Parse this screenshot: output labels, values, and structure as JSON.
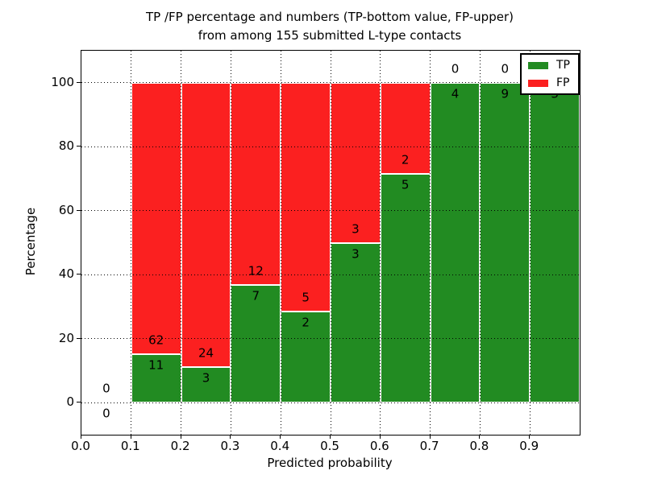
{
  "figure": {
    "title_line1": "TP /FP percentage and numbers (TP-bottom value, FP-upper)",
    "title_line2": "from among 155 submitted L-type contacts"
  },
  "chart_data": {
    "type": "bar",
    "stacked": true,
    "normalized_to_percent": true,
    "title": "TP /FP percentage and numbers (TP-bottom value, FP-upper)\nfrom among 155 submitted L-type contacts",
    "xlabel": "Predicted probability",
    "ylabel": "Percentage",
    "total_contacts": 155,
    "xlim": [
      0.0,
      1.0
    ],
    "ylim": [
      -10,
      110
    ],
    "bin_width": 0.1,
    "xticks": [
      0.0,
      0.1,
      0.2,
      0.3,
      0.4,
      0.5,
      0.6,
      0.7,
      0.8,
      0.9
    ],
    "xtick_labels": [
      "0.0",
      "0.1",
      "0.2",
      "0.3",
      "0.4",
      "0.5",
      "0.6",
      "0.7",
      "0.8",
      "0.9"
    ],
    "yticks": [
      0,
      20,
      40,
      60,
      80,
      100
    ],
    "ytick_labels": [
      "0",
      "20",
      "40",
      "60",
      "80",
      "100"
    ],
    "grid": {
      "style": "dotted",
      "color": "#000000",
      "drawn_above_bars": true
    },
    "bar_edge_color": "#ffffff",
    "background": "#ffffff",
    "colors": {
      "tp": "#228b22",
      "fp": "#fb2020"
    },
    "legend": [
      {
        "label": "TP",
        "color": "#228b22"
      },
      {
        "label": "FP",
        "color": "#fb2020"
      }
    ],
    "legend_position": "upper right",
    "bins": [
      {
        "range": "0.0-0.1",
        "x_start": 0.0,
        "tp": 0,
        "fp": 0,
        "tp_pct": 0.0
      },
      {
        "range": "0.1-0.2",
        "x_start": 0.1,
        "tp": 11,
        "fp": 62,
        "tp_pct": 15.07
      },
      {
        "range": "0.2-0.3",
        "x_start": 0.2,
        "tp": 3,
        "fp": 24,
        "tp_pct": 11.11
      },
      {
        "range": "0.3-0.4",
        "x_start": 0.3,
        "tp": 7,
        "fp": 12,
        "tp_pct": 36.84
      },
      {
        "range": "0.4-0.5",
        "x_start": 0.4,
        "tp": 2,
        "fp": 5,
        "tp_pct": 28.57
      },
      {
        "range": "0.5-0.6",
        "x_start": 0.5,
        "tp": 3,
        "fp": 3,
        "tp_pct": 50.0
      },
      {
        "range": "0.6-0.7",
        "x_start": 0.6,
        "tp": 5,
        "fp": 2,
        "tp_pct": 71.43
      },
      {
        "range": "0.7-0.8",
        "x_start": 0.7,
        "tp": 4,
        "fp": 0,
        "tp_pct": 100.0
      },
      {
        "range": "0.8-0.9",
        "x_start": 0.8,
        "tp": 9,
        "fp": 0,
        "tp_pct": 100.0
      },
      {
        "range": "0.9-1.0",
        "x_start": 0.9,
        "tp": 3,
        "fp": 0,
        "tp_pct": 100.0
      }
    ]
  }
}
